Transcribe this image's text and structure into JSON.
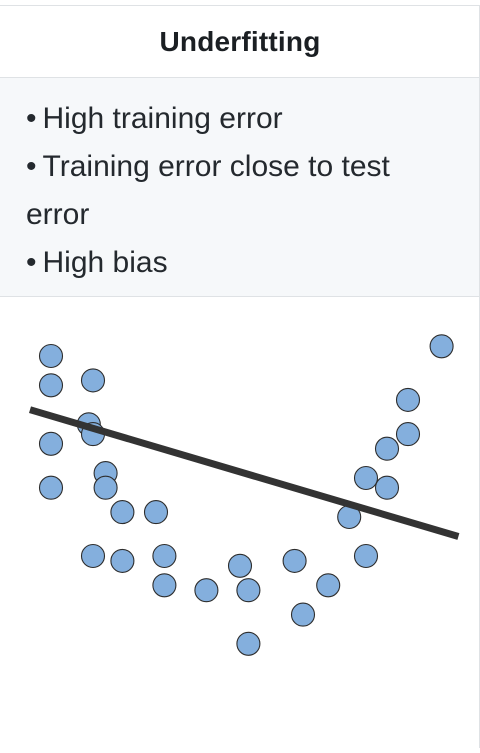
{
  "header": {
    "title": "Underfitting"
  },
  "bullets": [
    {
      "line1": "High training error",
      "line2": ""
    },
    {
      "line1": "Training error close to test",
      "line2": "error"
    },
    {
      "line1": "High bias",
      "line2": ""
    }
  ],
  "bullet_symbol": "•",
  "colors": {
    "point_fill": "#84afdd",
    "point_stroke": "#2d2d2d",
    "fit_line": "#333333",
    "header_bg": "#ffffff",
    "bullet_bg": "#f6f8fa",
    "border": "#dfe2e5"
  },
  "chart_data": {
    "type": "scatter",
    "title": "",
    "xlabel": "",
    "ylabel": "",
    "xlim": [
      0,
      10
    ],
    "ylim": [
      0,
      8.2
    ],
    "grid": false,
    "points": [
      {
        "x": 0.5,
        "y": 7.4
      },
      {
        "x": 0.5,
        "y": 6.8
      },
      {
        "x": 0.5,
        "y": 5.6
      },
      {
        "x": 0.5,
        "y": 4.7
      },
      {
        "x": 1.5,
        "y": 6.9
      },
      {
        "x": 1.4,
        "y": 6.0
      },
      {
        "x": 1.5,
        "y": 5.8
      },
      {
        "x": 1.8,
        "y": 5.0
      },
      {
        "x": 1.8,
        "y": 4.7
      },
      {
        "x": 2.2,
        "y": 4.2
      },
      {
        "x": 2.2,
        "y": 3.2
      },
      {
        "x": 1.5,
        "y": 3.3
      },
      {
        "x": 3.0,
        "y": 4.2
      },
      {
        "x": 3.2,
        "y": 3.3
      },
      {
        "x": 3.2,
        "y": 2.7
      },
      {
        "x": 4.2,
        "y": 2.6
      },
      {
        "x": 5.0,
        "y": 3.1
      },
      {
        "x": 5.2,
        "y": 2.6
      },
      {
        "x": 5.2,
        "y": 1.5
      },
      {
        "x": 6.3,
        "y": 3.2
      },
      {
        "x": 6.5,
        "y": 2.1
      },
      {
        "x": 7.1,
        "y": 2.7
      },
      {
        "x": 7.6,
        "y": 4.1
      },
      {
        "x": 8.0,
        "y": 3.3
      },
      {
        "x": 8.0,
        "y": 4.9
      },
      {
        "x": 8.5,
        "y": 4.7
      },
      {
        "x": 8.5,
        "y": 5.5
      },
      {
        "x": 9.0,
        "y": 5.8
      },
      {
        "x": 9.0,
        "y": 6.5
      },
      {
        "x": 9.8,
        "y": 7.6
      }
    ],
    "fit_line": {
      "x": [
        0,
        10.2
      ],
      "y": [
        6.3,
        3.7
      ]
    }
  }
}
